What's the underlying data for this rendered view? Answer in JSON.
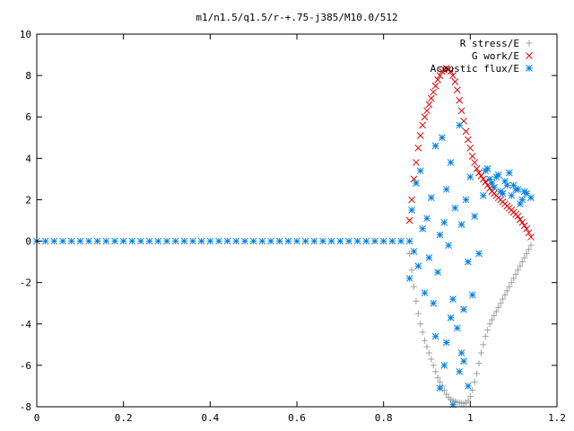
{
  "chart_data": {
    "type": "scatter",
    "title": "m1/n1.5/q1.5/r-+.75-j385/M10.0/512",
    "xlabel": "",
    "ylabel": "",
    "xlim": [
      0,
      1.2
    ],
    "ylim": [
      -8,
      10
    ],
    "x_ticks": [
      "0",
      "0.2",
      "0.4",
      "0.6",
      "0.8",
      "1",
      "1.2"
    ],
    "y_ticks": [
      "-8",
      "-6",
      "-4",
      "-2",
      "0",
      "2",
      "4",
      "6",
      "8",
      "10"
    ],
    "grid": false,
    "legend_position": "top-right",
    "series": [
      {
        "name": "R stress/E",
        "marker": "plus",
        "color": "#a0a0a0",
        "x": [
          0.86,
          0.865,
          0.87,
          0.875,
          0.88,
          0.885,
          0.89,
          0.895,
          0.9,
          0.905,
          0.91,
          0.915,
          0.92,
          0.925,
          0.93,
          0.935,
          0.94,
          0.945,
          0.95,
          0.955,
          0.96,
          0.965,
          0.97,
          0.975,
          0.98,
          0.985,
          0.99,
          0.995,
          1.0,
          1.005,
          1.01,
          1.015,
          1.02,
          1.025,
          1.03,
          1.035,
          1.04,
          1.045,
          1.05,
          1.055,
          1.06,
          1.065,
          1.07,
          1.075,
          1.08,
          1.085,
          1.09,
          1.095,
          1.1,
          1.105,
          1.11,
          1.115,
          1.12,
          1.125,
          1.13,
          1.135,
          1.14
        ],
        "y": [
          -0.6,
          -1.4,
          -2.2,
          -2.9,
          -3.5,
          -4.0,
          -4.4,
          -4.8,
          -5.1,
          -5.4,
          -5.7,
          -6.0,
          -6.3,
          -6.6,
          -6.8,
          -7.0,
          -7.2,
          -7.4,
          -7.55,
          -7.65,
          -7.7,
          -7.75,
          -7.78,
          -7.8,
          -7.82,
          -7.84,
          -7.8,
          -7.7,
          -7.5,
          -7.2,
          -6.8,
          -6.4,
          -5.9,
          -5.4,
          -5.0,
          -4.6,
          -4.3,
          -4.0,
          -3.8,
          -3.6,
          -3.4,
          -3.2,
          -3.0,
          -2.8,
          -2.6,
          -2.4,
          -2.2,
          -2.0,
          -1.8,
          -1.6,
          -1.4,
          -1.2,
          -1.0,
          -0.8,
          -0.6,
          -0.4,
          -0.2
        ]
      },
      {
        "name": "G work/E",
        "marker": "cross",
        "color": "#e00000",
        "x": [
          0.86,
          0.865,
          0.87,
          0.875,
          0.88,
          0.885,
          0.89,
          0.895,
          0.9,
          0.905,
          0.91,
          0.915,
          0.92,
          0.925,
          0.93,
          0.935,
          0.94,
          0.945,
          0.95,
          0.955,
          0.96,
          0.965,
          0.97,
          0.975,
          0.98,
          0.985,
          0.99,
          0.995,
          1.0,
          1.005,
          1.01,
          1.015,
          1.02,
          1.025,
          1.03,
          1.035,
          1.04,
          1.045,
          1.05,
          1.055,
          1.06,
          1.065,
          1.07,
          1.075,
          1.08,
          1.085,
          1.09,
          1.095,
          1.1,
          1.105,
          1.11,
          1.115,
          1.12,
          1.125,
          1.13,
          1.135,
          1.14
        ],
        "y": [
          1.0,
          2.0,
          3.0,
          3.8,
          4.5,
          5.1,
          5.6,
          6.0,
          6.3,
          6.6,
          6.9,
          7.2,
          7.5,
          7.8,
          8.0,
          8.2,
          8.3,
          8.35,
          8.3,
          8.2,
          8.0,
          7.7,
          7.3,
          6.8,
          6.3,
          5.8,
          5.3,
          4.9,
          4.5,
          4.1,
          3.8,
          3.5,
          3.3,
          3.15,
          3.0,
          2.85,
          2.7,
          2.55,
          2.4,
          2.3,
          2.2,
          2.1,
          2.0,
          1.9,
          1.8,
          1.7,
          1.6,
          1.5,
          1.4,
          1.3,
          1.2,
          1.05,
          0.9,
          0.75,
          0.6,
          0.4,
          0.2
        ]
      },
      {
        "name": "Acoustic flux/E",
        "marker": "star",
        "color": "#0080e0",
        "x": [
          0.0,
          0.02,
          0.04,
          0.06,
          0.08,
          0.1,
          0.12,
          0.14,
          0.16,
          0.18,
          0.2,
          0.22,
          0.24,
          0.26,
          0.28,
          0.3,
          0.32,
          0.34,
          0.36,
          0.38,
          0.4,
          0.42,
          0.44,
          0.46,
          0.48,
          0.5,
          0.52,
          0.54,
          0.56,
          0.58,
          0.6,
          0.62,
          0.64,
          0.66,
          0.68,
          0.7,
          0.72,
          0.74,
          0.76,
          0.78,
          0.8,
          0.82,
          0.84,
          0.86,
          0.86,
          0.865,
          0.87,
          0.875,
          0.88,
          0.885,
          0.89,
          0.895,
          0.9,
          0.905,
          0.91,
          0.915,
          0.92,
          0.925,
          0.93,
          0.935,
          0.94,
          0.945,
          0.95,
          0.955,
          0.96,
          0.965,
          0.97,
          0.975,
          0.98,
          0.985,
          0.99,
          0.995,
          1.0,
          1.005,
          1.01,
          1.02,
          1.03,
          1.04,
          1.05,
          1.06,
          1.07,
          1.08,
          1.09,
          1.1,
          1.11,
          1.12,
          1.13,
          1.14,
          1.035,
          1.045,
          1.055,
          1.065,
          1.075,
          1.085,
          1.095,
          1.105,
          1.115,
          1.125,
          0.96,
          0.98,
          0.995,
          0.93,
          0.975,
          0.945,
          0.92,
          0.955,
          0.985,
          0.94
        ],
        "y": [
          0,
          0,
          0,
          0,
          0,
          0,
          0,
          0,
          0,
          0,
          0,
          0,
          0,
          0,
          0,
          0,
          0,
          0,
          0,
          0,
          0,
          0,
          0,
          0,
          0,
          0,
          0,
          0,
          0,
          0,
          0,
          0,
          0,
          0,
          0,
          0,
          0,
          0,
          0,
          0,
          0,
          0,
          0,
          0,
          -1.8,
          1.5,
          -0.5,
          2.8,
          -1.2,
          3.4,
          0.6,
          -2.5,
          1.1,
          -0.8,
          2.1,
          -3.0,
          4.6,
          -1.5,
          0.3,
          5.0,
          -6.0,
          2.5,
          -0.2,
          3.8,
          -2.8,
          1.6,
          -4.2,
          5.6,
          0.8,
          -3.3,
          2.0,
          -1.0,
          3.1,
          -2.6,
          1.2,
          -0.6,
          2.2,
          3.5,
          2.8,
          3.1,
          2.4,
          2.9,
          3.3,
          2.7,
          2.5,
          2.0,
          2.3,
          2.1,
          3.4,
          3.0,
          2.6,
          3.2,
          2.3,
          2.7,
          2.2,
          2.5,
          1.8,
          2.4,
          -7.9,
          -5.4,
          -7.0,
          -7.1,
          -6.3,
          -4.9,
          -4.6,
          -3.7,
          -5.8,
          0.9
        ]
      }
    ]
  }
}
